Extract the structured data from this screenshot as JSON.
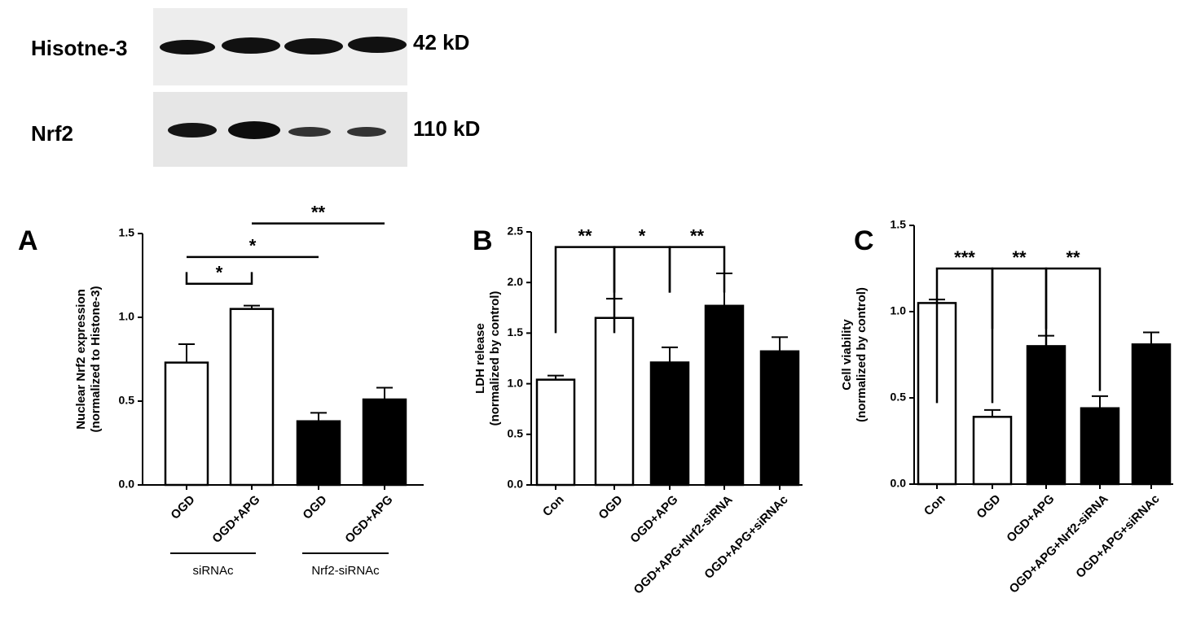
{
  "blot": {
    "rows": [
      {
        "label": "Hisotne-3",
        "size": "42 kD"
      },
      {
        "label": "Nrf2",
        "size": "110 kD"
      }
    ]
  },
  "chart_data": [
    {
      "type": "bar",
      "panel": "A",
      "ylabel": [
        "Nuclear Nrf2 expression",
        "(normalized to Histone-3)"
      ],
      "categories": [
        "OGD",
        "OGD+APG",
        "OGD",
        "OGD+APG"
      ],
      "groups": [
        "siRNAc",
        "Nrf2-siRNAc"
      ],
      "values": [
        0.73,
        1.05,
        0.38,
        0.51
      ],
      "errors": [
        0.11,
        0.02,
        0.05,
        0.07
      ],
      "colors": [
        "#ffffff",
        "#ffffff",
        "#000000",
        "#000000"
      ],
      "ylim": [
        0,
        1.5
      ],
      "yticks": [
        {
          "value": 0,
          "label": "0.0"
        },
        {
          "value": 0.5,
          "label": "0.5"
        },
        {
          "value": 1,
          "label": "1.0"
        },
        {
          "value": 1.5,
          "label": "1.5"
        }
      ],
      "annotations": [
        "*",
        "*",
        "**"
      ]
    },
    {
      "type": "bar",
      "panel": "B",
      "ylabel": [
        "LDH release",
        "(normalized by control)"
      ],
      "categories": [
        "Con",
        "OGD",
        "OGD+APG",
        "OGD+APG+Nrf2-siRNA",
        "OGD+APG+siRNAc"
      ],
      "values": [
        1.04,
        1.65,
        1.21,
        1.77,
        1.32
      ],
      "errors": [
        0.04,
        0.19,
        0.15,
        0.32,
        0.14
      ],
      "colors": [
        "#ffffff",
        "#ffffff",
        "#000000",
        "#000000",
        "#000000"
      ],
      "ylim": [
        0,
        2.5
      ],
      "yticks": [
        {
          "value": 0,
          "label": "0.0"
        },
        {
          "value": 0.5,
          "label": "0.5"
        },
        {
          "value": 1,
          "label": "1.0"
        },
        {
          "value": 1.5,
          "label": "1.5"
        },
        {
          "value": 2,
          "label": "2.0"
        },
        {
          "value": 2.5,
          "label": "2.5"
        }
      ],
      "annotations": [
        "**",
        "*",
        "**"
      ]
    },
    {
      "type": "bar",
      "panel": "C",
      "ylabel": [
        "Cell viability",
        "(normalized by control)"
      ],
      "categories": [
        "Con",
        "OGD",
        "OGD+APG",
        "OGD+APG+Nrf2-siRNA",
        "OGD+APG+siRNAc"
      ],
      "values": [
        1.05,
        0.39,
        0.8,
        0.44,
        0.81
      ],
      "errors": [
        0.02,
        0.04,
        0.06,
        0.07,
        0.07
      ],
      "colors": [
        "#ffffff",
        "#ffffff",
        "#000000",
        "#000000",
        "#000000"
      ],
      "ylim": [
        0,
        1.5
      ],
      "yticks": [
        {
          "value": 0,
          "label": "0.0"
        },
        {
          "value": 0.5,
          "label": "0.5"
        },
        {
          "value": 1,
          "label": "1.0"
        },
        {
          "value": 1.5,
          "label": "1.5"
        }
      ],
      "annotations": [
        "***",
        "**",
        "**"
      ]
    }
  ]
}
